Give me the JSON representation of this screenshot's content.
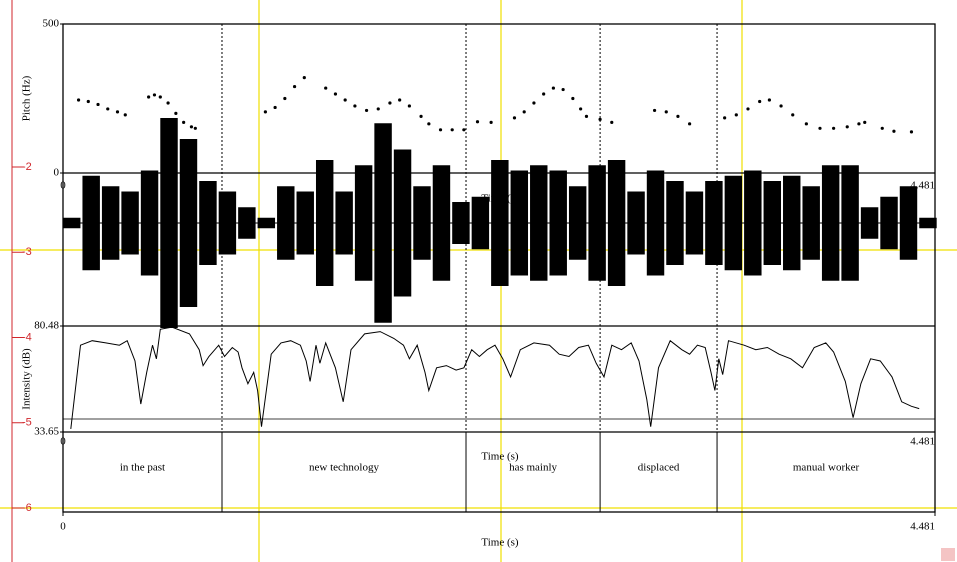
{
  "chart_data": [
    {
      "type": "scatter",
      "ylabel": "Pitch (Hz)",
      "xlabel": "Time (s)",
      "color": "#000000",
      "xlim": [
        0,
        4.481
      ],
      "xticks": [
        0,
        4.481
      ],
      "ylim": [
        0,
        500
      ],
      "yticks": [
        0,
        500
      ],
      "x": [
        0.08,
        0.13,
        0.18,
        0.23,
        0.28,
        0.32,
        0.44,
        0.47,
        0.5,
        0.54,
        0.58,
        0.62,
        0.66,
        0.68,
        1.04,
        1.09,
        1.14,
        1.19,
        1.24,
        1.35,
        1.4,
        1.45,
        1.5,
        1.56,
        1.62,
        1.68,
        1.73,
        1.78,
        1.84,
        1.88,
        1.94,
        2.0,
        2.06,
        2.13,
        2.2,
        2.32,
        2.37,
        2.42,
        2.47,
        2.52,
        2.57,
        2.62,
        2.66,
        2.69,
        2.76,
        2.82,
        3.04,
        3.1,
        3.16,
        3.22,
        3.4,
        3.46,
        3.52,
        3.58,
        3.63,
        3.69,
        3.75,
        3.82,
        3.89,
        3.96,
        4.03,
        4.09,
        4.12,
        4.21,
        4.27,
        4.36
      ],
      "values": [
        245,
        240,
        230,
        215,
        205,
        195,
        255,
        262,
        255,
        235,
        200,
        170,
        155,
        150,
        205,
        220,
        250,
        290,
        320,
        285,
        265,
        245,
        225,
        210,
        215,
        235,
        245,
        225,
        190,
        165,
        145,
        145,
        145,
        172,
        170,
        185,
        205,
        235,
        265,
        285,
        280,
        250,
        215,
        190,
        180,
        170,
        210,
        205,
        190,
        165,
        185,
        195,
        215,
        240,
        245,
        225,
        195,
        165,
        150,
        150,
        155,
        165,
        170,
        150,
        140,
        138
      ]
    },
    {
      "type": "waveform",
      "color": "#000000",
      "xlim": [
        0,
        4.481
      ],
      "x": [
        0,
        0.1,
        0.2,
        0.3,
        0.4,
        0.5,
        0.6,
        0.7,
        0.8,
        0.9,
        1.0,
        1.1,
        1.2,
        1.3,
        1.4,
        1.5,
        1.6,
        1.7,
        1.8,
        1.9,
        2.0,
        2.1,
        2.2,
        2.3,
        2.4,
        2.5,
        2.6,
        2.7,
        2.8,
        2.9,
        3.0,
        3.1,
        3.2,
        3.3,
        3.4,
        3.5,
        3.6,
        3.7,
        3.8,
        3.9,
        4.0,
        4.1,
        4.2,
        4.3,
        4.4
      ],
      "values": [
        0.05,
        0.45,
        0.35,
        0.3,
        0.5,
        1.0,
        0.8,
        0.4,
        0.3,
        0.15,
        0.05,
        0.35,
        0.3,
        0.6,
        0.3,
        0.55,
        0.95,
        0.7,
        0.35,
        0.55,
        0.2,
        0.25,
        0.6,
        0.5,
        0.55,
        0.5,
        0.35,
        0.55,
        0.6,
        0.3,
        0.5,
        0.4,
        0.3,
        0.4,
        0.45,
        0.5,
        0.4,
        0.45,
        0.35,
        0.55,
        0.55,
        0.15,
        0.25,
        0.35,
        0.05
      ]
    },
    {
      "type": "line",
      "ylabel": "Intensity (dB)",
      "xlabel": "Time (s)",
      "color": "#000000",
      "xlim": [
        0,
        4.481
      ],
      "xticks": [
        0,
        4.481
      ],
      "ylim": [
        33.65,
        80.48
      ],
      "yticks": [
        33.65,
        80.48
      ],
      "x": [
        0.04,
        0.09,
        0.15,
        0.22,
        0.29,
        0.33,
        0.37,
        0.4,
        0.43,
        0.46,
        0.48,
        0.5,
        0.56,
        0.65,
        0.7,
        0.72,
        0.75,
        0.8,
        0.83,
        0.87,
        0.9,
        0.92,
        0.95,
        0.98,
        1.0,
        1.02,
        1.07,
        1.12,
        1.17,
        1.22,
        1.25,
        1.27,
        1.3,
        1.32,
        1.35,
        1.4,
        1.44,
        1.48,
        1.55,
        1.63,
        1.7,
        1.75,
        1.78,
        1.82,
        1.86,
        1.88,
        1.92,
        1.97,
        2.02,
        2.06,
        2.1,
        2.14,
        2.18,
        2.22,
        2.26,
        2.3,
        2.35,
        2.42,
        2.5,
        2.55,
        2.6,
        2.65,
        2.7,
        2.74,
        2.78,
        2.82,
        2.87,
        2.92,
        2.96,
        3.0,
        3.02,
        3.06,
        3.12,
        3.18,
        3.22,
        3.26,
        3.3,
        3.33,
        3.35,
        3.37,
        3.39,
        3.42,
        3.5,
        3.56,
        3.62,
        3.68,
        3.74,
        3.8,
        3.86,
        3.92,
        3.96,
        4.02,
        4.06,
        4.1,
        4.15,
        4.2,
        4.26,
        4.31,
        4.36,
        4.4
      ],
      "values": [
        35,
        72,
        74,
        73,
        72,
        74,
        65,
        46,
        60,
        72,
        66,
        79,
        80,
        77,
        70,
        63,
        67,
        72,
        67,
        71,
        69,
        62,
        55,
        60,
        52,
        36,
        68,
        73,
        74,
        72,
        65,
        56,
        72,
        64,
        73,
        62,
        47,
        70,
        77,
        78,
        75,
        72,
        66,
        72,
        60,
        52,
        62,
        63,
        61,
        62,
        70,
        67,
        70,
        72,
        66,
        58,
        70,
        73,
        72,
        68,
        67,
        71,
        72,
        64,
        58,
        72,
        70,
        73,
        65,
        48,
        36,
        62,
        74,
        70,
        68,
        72,
        71,
        60,
        52,
        66,
        59,
        74,
        72,
        70,
        71,
        68,
        66,
        62,
        71,
        73,
        69,
        56,
        40,
        55,
        66,
        65,
        58,
        47,
        45,
        44
      ]
    },
    {
      "type": "tier",
      "xlabel": "Time (s)",
      "xlim": [
        0,
        4.481
      ],
      "xticks": [
        0,
        4.481
      ],
      "boundaries": [
        0.817,
        2.071,
        2.76,
        3.361
      ],
      "labels": [
        "in the past",
        "new technology",
        "has mainly",
        "displaced",
        "manual worker"
      ]
    }
  ],
  "ruler": {
    "ticks": [
      -2,
      -3,
      -4,
      -5,
      -6
    ],
    "color": "#d0262b"
  }
}
